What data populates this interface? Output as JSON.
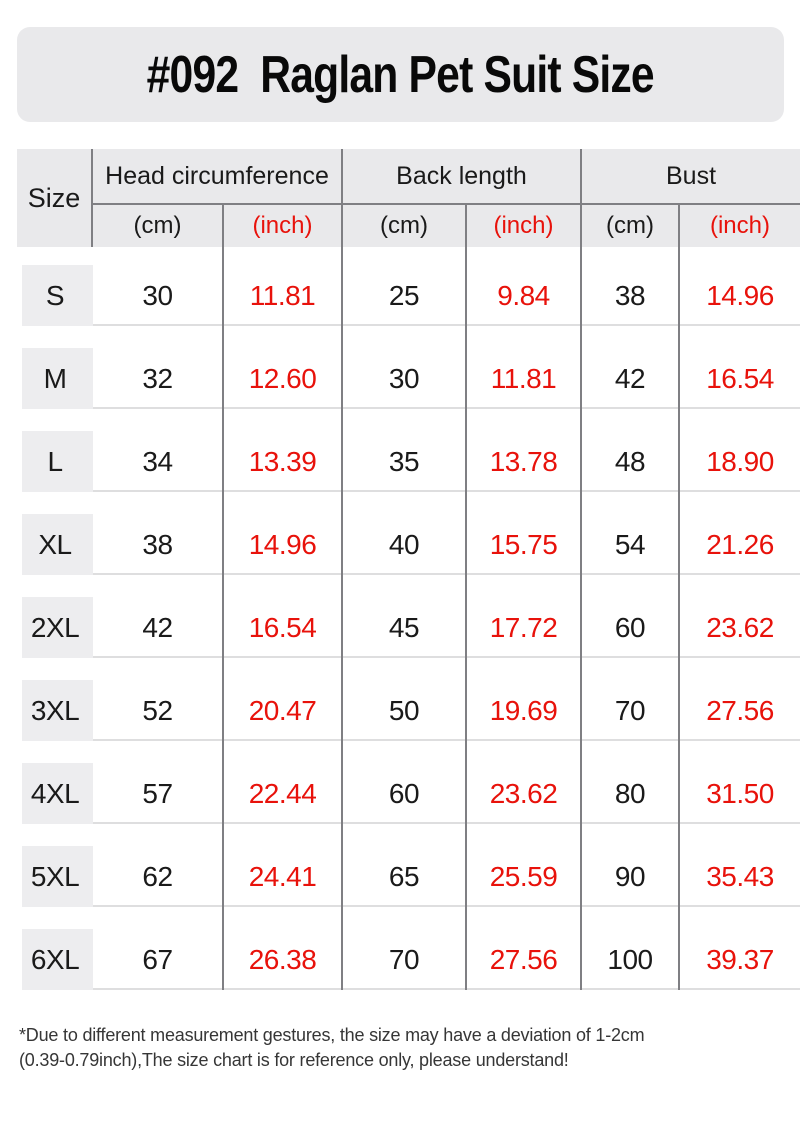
{
  "title": "#092  Raglan Pet Suit Size",
  "table": {
    "size_header": "Size",
    "groups": [
      {
        "label": "Head circumference"
      },
      {
        "label": "Back length"
      },
      {
        "label": "Bust"
      }
    ],
    "unit_cm": "(cm)",
    "unit_inch": "(inch)",
    "rows": [
      {
        "size": "S",
        "head_cm": "30",
        "head_inch": "11.81",
        "back_cm": "25",
        "back_inch": "9.84",
        "bust_cm": "38",
        "bust_inch": "14.96"
      },
      {
        "size": "M",
        "head_cm": "32",
        "head_inch": "12.60",
        "back_cm": "30",
        "back_inch": "11.81",
        "bust_cm": "42",
        "bust_inch": "16.54"
      },
      {
        "size": "L",
        "head_cm": "34",
        "head_inch": "13.39",
        "back_cm": "35",
        "back_inch": "13.78",
        "bust_cm": "48",
        "bust_inch": "18.90"
      },
      {
        "size": "XL",
        "head_cm": "38",
        "head_inch": "14.96",
        "back_cm": "40",
        "back_inch": "15.75",
        "bust_cm": "54",
        "bust_inch": "21.26"
      },
      {
        "size": "2XL",
        "head_cm": "42",
        "head_inch": "16.54",
        "back_cm": "45",
        "back_inch": "17.72",
        "bust_cm": "60",
        "bust_inch": "23.62"
      },
      {
        "size": "3XL",
        "head_cm": "52",
        "head_inch": "20.47",
        "back_cm": "50",
        "back_inch": "19.69",
        "bust_cm": "70",
        "bust_inch": "27.56"
      },
      {
        "size": "4XL",
        "head_cm": "57",
        "head_inch": "22.44",
        "back_cm": "60",
        "back_inch": "23.62",
        "bust_cm": "80",
        "bust_inch": "31.50"
      },
      {
        "size": "5XL",
        "head_cm": "62",
        "head_inch": "24.41",
        "back_cm": "65",
        "back_inch": "25.59",
        "bust_cm": "90",
        "bust_inch": "35.43"
      },
      {
        "size": "6XL",
        "head_cm": "67",
        "head_inch": "26.38",
        "back_cm": "70",
        "back_inch": "27.56",
        "bust_cm": "100",
        "bust_inch": "39.37"
      }
    ]
  },
  "footnote": {
    "text": "*Due to different measurement gestures, the size may have a deviation of 1-2cm\n (0.39-0.79inch),The size chart is for reference only, please understand!"
  },
  "colors": {
    "accent_red": "#e8120b",
    "header_bg": "#e9e9eb",
    "size_cell_bg": "#ededef",
    "grid_line_dark": "#7f7f83",
    "grid_line_light": "#dededf",
    "text": "#1a1a1a"
  }
}
